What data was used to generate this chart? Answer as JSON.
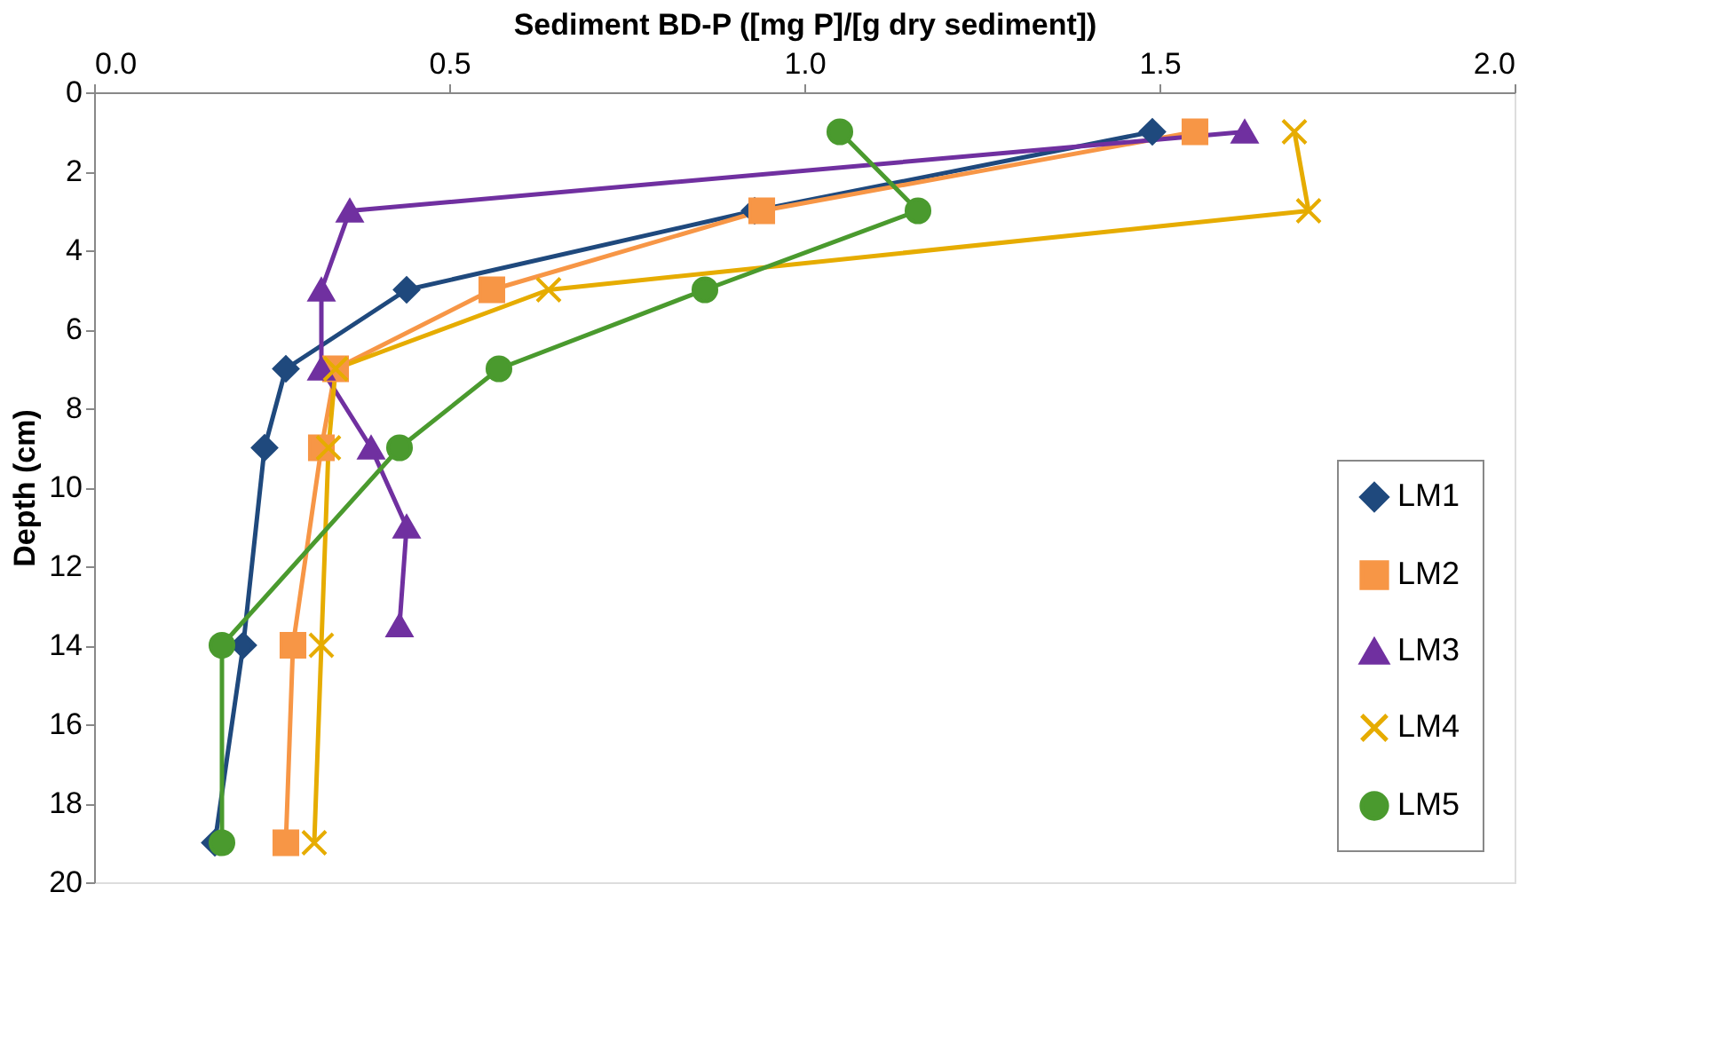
{
  "chart_data": {
    "type": "line",
    "xlabel": "Sediment BD-P ([mg P]/[g dry sediment])",
    "ylabel": "Depth (cm)",
    "xlim": [
      0,
      2
    ],
    "xticks": [
      {
        "value": 0,
        "label": "0.0"
      },
      {
        "value": 0.5,
        "label": "0.5"
      },
      {
        "value": 1,
        "label": "1.0"
      },
      {
        "value": 1.5,
        "label": "1.5"
      },
      {
        "value": 2,
        "label": "2.0"
      }
    ],
    "ylim": [
      20,
      0
    ],
    "yticks": [
      0,
      2,
      4,
      6,
      8,
      10,
      12,
      14,
      16,
      18,
      20
    ],
    "grid": false,
    "legend": "bottom right",
    "line_style": "solid",
    "series": [
      {
        "name": "LM1",
        "color": "#1f497d",
        "marker": "diamond",
        "x": [
          1.49,
          0.93,
          0.44,
          0.27,
          0.24,
          0.21,
          0.17
        ],
        "values": [
          1,
          3,
          5,
          7,
          9,
          14,
          19
        ]
      },
      {
        "name": "LM2",
        "color": "#f79646",
        "marker": "square",
        "x": [
          1.55,
          0.94,
          0.56,
          0.34,
          0.32,
          0.28,
          0.27
        ],
        "values": [
          1,
          3,
          5,
          7,
          9,
          14,
          19
        ]
      },
      {
        "name": "LM3",
        "color": "#7030a0",
        "marker": "triangle",
        "x": [
          1.62,
          0.36,
          0.32,
          0.32,
          0.39,
          0.44,
          0.43
        ],
        "values": [
          1,
          3,
          5,
          7,
          9,
          11,
          13.5
        ]
      },
      {
        "name": "LM4",
        "color": "#e6ac00",
        "marker": "cross",
        "x": [
          1.69,
          1.71,
          0.64,
          0.34,
          0.33,
          0.32,
          0.31
        ],
        "values": [
          1,
          3,
          5,
          7,
          9,
          14,
          19
        ]
      },
      {
        "name": "LM5",
        "color": "#4a9a2e",
        "marker": "circle",
        "x": [
          1.05,
          1.16,
          0.86,
          0.57,
          0.43,
          0.18,
          0.18
        ],
        "values": [
          1,
          3,
          5,
          7,
          9,
          14,
          19
        ]
      }
    ]
  }
}
